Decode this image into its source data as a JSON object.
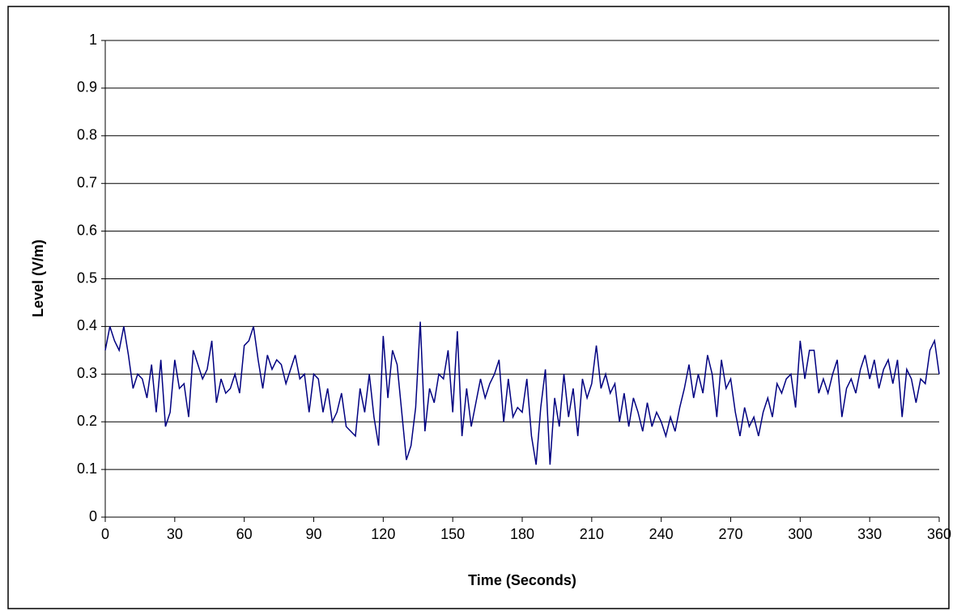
{
  "chart_data": {
    "type": "line",
    "xlabel": "Time (Seconds)",
    "ylabel": "Level (V/m)",
    "xlim": [
      0,
      360
    ],
    "xticks": [
      0,
      30,
      60,
      90,
      120,
      150,
      180,
      210,
      240,
      270,
      300,
      330,
      360
    ],
    "ylim": [
      0,
      1
    ],
    "yticks": [
      0,
      0.1,
      0.2,
      0.3,
      0.4,
      0.5,
      0.6,
      0.7,
      0.8,
      0.9,
      1
    ],
    "grid": true,
    "x": [
      0,
      2,
      4,
      6,
      8,
      10,
      12,
      14,
      16,
      18,
      20,
      22,
      24,
      26,
      28,
      30,
      32,
      34,
      36,
      38,
      40,
      42,
      44,
      46,
      48,
      50,
      52,
      54,
      56,
      58,
      60,
      62,
      64,
      66,
      68,
      70,
      72,
      74,
      76,
      78,
      80,
      82,
      84,
      86,
      88,
      90,
      92,
      94,
      96,
      98,
      100,
      102,
      104,
      106,
      108,
      110,
      112,
      114,
      116,
      118,
      120,
      122,
      124,
      126,
      128,
      130,
      132,
      134,
      136,
      138,
      140,
      142,
      144,
      146,
      148,
      150,
      152,
      154,
      156,
      158,
      160,
      162,
      164,
      166,
      168,
      170,
      172,
      174,
      176,
      178,
      180,
      182,
      184,
      186,
      188,
      190,
      192,
      194,
      196,
      198,
      200,
      202,
      204,
      206,
      208,
      210,
      212,
      214,
      216,
      218,
      220,
      222,
      224,
      226,
      228,
      230,
      232,
      234,
      236,
      238,
      240,
      242,
      244,
      246,
      248,
      250,
      252,
      254,
      256,
      258,
      260,
      262,
      264,
      266,
      268,
      270,
      272,
      274,
      276,
      278,
      280,
      282,
      284,
      286,
      288,
      290,
      292,
      294,
      296,
      298,
      300,
      302,
      304,
      306,
      308,
      310,
      312,
      314,
      316,
      318,
      320,
      322,
      324,
      326,
      328,
      330,
      332,
      334,
      336,
      338,
      340,
      342,
      344,
      346,
      348,
      350,
      352,
      354,
      356,
      358,
      360
    ],
    "series": [
      {
        "color": "#000080",
        "values": [
          0.35,
          0.4,
          0.37,
          0.35,
          0.4,
          0.34,
          0.27,
          0.3,
          0.29,
          0.25,
          0.32,
          0.22,
          0.33,
          0.19,
          0.22,
          0.33,
          0.27,
          0.28,
          0.21,
          0.35,
          0.32,
          0.29,
          0.31,
          0.37,
          0.24,
          0.29,
          0.26,
          0.27,
          0.3,
          0.26,
          0.36,
          0.37,
          0.4,
          0.33,
          0.27,
          0.34,
          0.31,
          0.33,
          0.32,
          0.28,
          0.31,
          0.34,
          0.29,
          0.3,
          0.22,
          0.3,
          0.29,
          0.22,
          0.27,
          0.2,
          0.22,
          0.26,
          0.19,
          0.18,
          0.17,
          0.27,
          0.22,
          0.3,
          0.21,
          0.15,
          0.38,
          0.25,
          0.35,
          0.32,
          0.22,
          0.12,
          0.15,
          0.23,
          0.41,
          0.18,
          0.27,
          0.24,
          0.3,
          0.29,
          0.35,
          0.22,
          0.39,
          0.17,
          0.27,
          0.19,
          0.24,
          0.29,
          0.25,
          0.28,
          0.3,
          0.33,
          0.2,
          0.29,
          0.21,
          0.23,
          0.22,
          0.29,
          0.17,
          0.11,
          0.23,
          0.31,
          0.11,
          0.25,
          0.19,
          0.3,
          0.21,
          0.27,
          0.17,
          0.29,
          0.25,
          0.28,
          0.36,
          0.27,
          0.3,
          0.26,
          0.28,
          0.2,
          0.26,
          0.19,
          0.25,
          0.22,
          0.18,
          0.24,
          0.19,
          0.22,
          0.2,
          0.17,
          0.21,
          0.18,
          0.23,
          0.27,
          0.32,
          0.25,
          0.3,
          0.26,
          0.34,
          0.3,
          0.21,
          0.33,
          0.27,
          0.29,
          0.22,
          0.17,
          0.23,
          0.19,
          0.21,
          0.17,
          0.22,
          0.25,
          0.21,
          0.28,
          0.26,
          0.29,
          0.3,
          0.23,
          0.37,
          0.29,
          0.35,
          0.35,
          0.26,
          0.29,
          0.26,
          0.3,
          0.33,
          0.21,
          0.27,
          0.29,
          0.26,
          0.31,
          0.34,
          0.29,
          0.33,
          0.27,
          0.31,
          0.33,
          0.28,
          0.33,
          0.21,
          0.31,
          0.29,
          0.24,
          0.29,
          0.28,
          0.35,
          0.37,
          0.3
        ]
      }
    ]
  }
}
